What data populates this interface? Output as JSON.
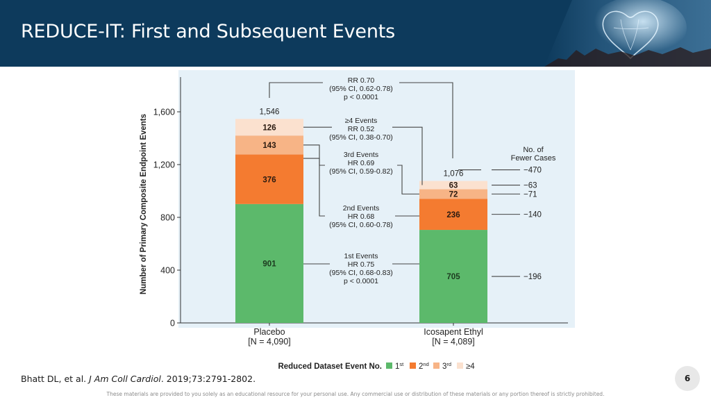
{
  "slide": {
    "title": "REDUCE-IT: First and Subsequent Events",
    "page_number": "6",
    "citation": {
      "authors": "Bhatt DL, et al. ",
      "journal": "J Am Coll Cardiol",
      "details": ". 2019;73:2791-2802."
    },
    "disclaimer": "These materials are provided to you solely as an educational resource for your personal use. Any commercial use or distribution of these materials or any portion thereof is strictly prohibited."
  },
  "colors": {
    "header": "#0d3a5c",
    "panel_bg": "#e6f1f8",
    "first": "#5cb96b",
    "second": "#f47b30",
    "third": "#f7b486",
    "fourth_plus": "#fbe1cf",
    "connector": "#444444"
  },
  "chart_data": {
    "type": "bar",
    "stacked": true,
    "ylabel": "Number of Primary Composite Endpoint Events",
    "ylim": [
      0,
      1800
    ],
    "yticks": [
      0,
      400,
      800,
      1200,
      1600
    ],
    "ytick_labels": [
      "0",
      "400",
      "800",
      "1,200",
      "1,600"
    ],
    "categories": [
      {
        "name": "Placebo",
        "n": "[N = 4,090]"
      },
      {
        "name": "Icosapent Ethyl",
        "n": "[N = 4,089]"
      }
    ],
    "series": [
      {
        "key": "first",
        "values": [
          901,
          705
        ],
        "labels": [
          "901",
          "705"
        ]
      },
      {
        "key": "second",
        "values": [
          376,
          236
        ],
        "labels": [
          "376",
          "236"
        ]
      },
      {
        "key": "third",
        "values": [
          143,
          72
        ],
        "labels": [
          "143",
          "72"
        ]
      },
      {
        "key": "fourth_plus",
        "values": [
          126,
          63
        ],
        "labels": [
          "126",
          "63"
        ]
      }
    ],
    "totals": [
      "1,546",
      "1,076"
    ],
    "annotations": {
      "overall": [
        "RR 0.70",
        "(95% CI, 0.62-0.78)",
        "p < 0.0001"
      ],
      "fourth_plus": [
        "≥4 Events",
        "RR 0.52",
        "(95% CI, 0.38-0.70)"
      ],
      "third": [
        "3rd Events",
        "HR 0.69",
        "(95% CI, 0.59-0.82)"
      ],
      "second": [
        "2nd Events",
        "HR 0.68",
        "(95% CI, 0.60-0.78)"
      ],
      "first": [
        "1st Events",
        "HR 0.75",
        "(95% CI, 0.68-0.83)",
        "p < 0.0001"
      ]
    },
    "fewer_cases": {
      "header": [
        "No. of",
        "Fewer Cases"
      ],
      "total": "−470",
      "fourth_plus": "−63",
      "third": "−71",
      "second": "−140",
      "first": "−196"
    },
    "legend": {
      "title": "Reduced Dataset Event No.",
      "items": [
        {
          "key": "first",
          "num": "1",
          "sup": "st"
        },
        {
          "key": "second",
          "num": "2",
          "sup": "nd"
        },
        {
          "key": "third",
          "num": "3",
          "sup": "rd"
        },
        {
          "key": "fourth_plus",
          "num": "≥4",
          "sup": ""
        }
      ]
    }
  }
}
